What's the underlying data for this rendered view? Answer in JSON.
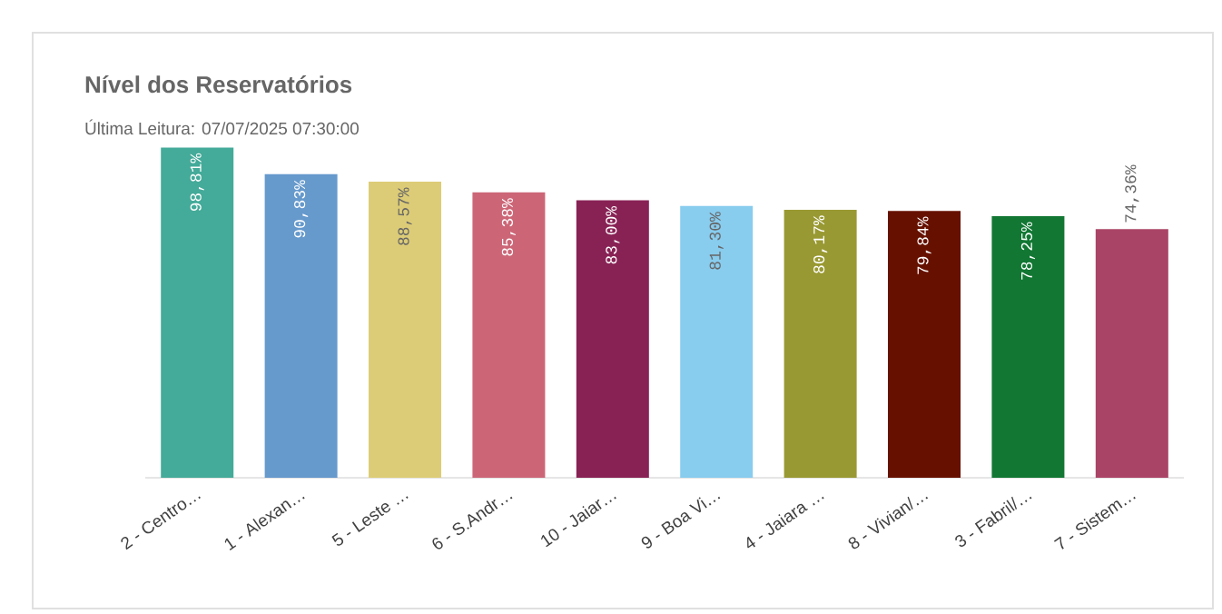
{
  "chart_data": {
    "type": "bar",
    "title": "Nível dos Reservatórios",
    "subtitle": "Última Leitura: 07/07/2025 07:30:00",
    "categories": [
      "2 - Centro…",
      "1 - Alexan…",
      "5 - Leste …",
      "6 - S.Andr…",
      "10 - Jaiar…",
      "9 - Boa Vi…",
      "4 - Jaiara …",
      "8 - Vivian/…",
      "3 - Fabril/…",
      "7 - Sistem…"
    ],
    "values": [
      98.81,
      90.83,
      88.57,
      85.38,
      83.0,
      81.3,
      80.17,
      79.84,
      78.25,
      74.36
    ],
    "value_labels": [
      "98,81%",
      "90,83%",
      "88,57%",
      "85,38%",
      "83,00%",
      "81,30%",
      "80,17%",
      "79,84%",
      "78,25%",
      "74,36%"
    ],
    "colors": [
      "#44aa99",
      "#6699cc",
      "#ddcc77",
      "#cc6677",
      "#882255",
      "#88ccee",
      "#999933",
      "#661100",
      "#117733",
      "#aa4466"
    ],
    "ylim": [
      0,
      100
    ]
  }
}
